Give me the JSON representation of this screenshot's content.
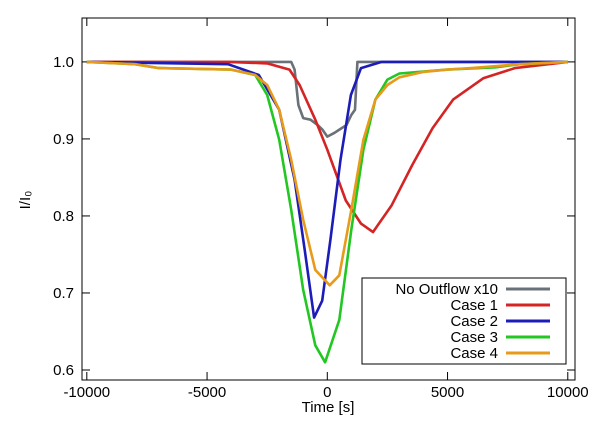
{
  "chart_data": {
    "type": "line",
    "x_label": "Time [s]",
    "y_label": "I/I₀",
    "xlim": [
      -10200,
      10300
    ],
    "ylim": [
      0.587,
      1.057
    ],
    "xticks": [
      -10000,
      -5000,
      0,
      5000,
      10000
    ],
    "yticks": [
      0.6,
      0.7,
      0.8,
      0.9,
      {
        "value": 1,
        "label": "1.0"
      }
    ],
    "legend": "lower right",
    "series": [
      {
        "name": "No Outflow x10",
        "color": "#6b7178",
        "x": [
          -10000,
          -1500,
          -1360,
          -1200,
          -1000,
          -700,
          -400,
          -200,
          0,
          300,
          600,
          800,
          1000,
          1150,
          1250,
          10000
        ],
        "values": [
          1,
          1,
          0.99,
          0.944,
          0.927,
          0.925,
          0.918,
          0.912,
          0.903,
          0.908,
          0.914,
          0.918,
          0.931,
          0.938,
          1,
          1
        ]
      },
      {
        "name": "Case 1",
        "color": "#d42424",
        "x": [
          -10000,
          -4100,
          -2500,
          -1570,
          -1150,
          -500,
          0,
          770,
          1400,
          1900,
          2680,
          3530,
          4380,
          5230,
          6500,
          7800,
          10000
        ],
        "values": [
          1,
          1,
          0.998,
          0.99,
          0.97,
          0.925,
          0.886,
          0.82,
          0.79,
          0.779,
          0.814,
          0.866,
          0.914,
          0.951,
          0.979,
          0.992,
          1
        ]
      },
      {
        "name": "Case 2",
        "color": "#1c1cb8",
        "x": [
          -10000,
          -4130,
          -2850,
          -2000,
          -1360,
          -940,
          -550,
          -210,
          130,
          550,
          980,
          1400,
          2260,
          10000
        ],
        "values": [
          1,
          0.997,
          0.983,
          0.938,
          0.847,
          0.756,
          0.668,
          0.69,
          0.769,
          0.873,
          0.957,
          0.992,
          1,
          1
        ]
      },
      {
        "name": "Case 3",
        "color": "#22c722",
        "x": [
          -10000,
          -8000,
          -7000,
          -4000,
          -3000,
          -2500,
          -2000,
          -1500,
          -1000,
          -500,
          -90,
          500,
          1000,
          1500,
          2000,
          2500,
          3000,
          5000,
          7000,
          8000,
          10000
        ],
        "values": [
          1,
          0.997,
          0.992,
          0.99,
          0.983,
          0.957,
          0.899,
          0.808,
          0.704,
          0.632,
          0.61,
          0.665,
          0.782,
          0.886,
          0.951,
          0.977,
          0.985,
          0.99,
          0.993,
          0.997,
          1
        ]
      },
      {
        "name": "Case 4",
        "color": "#e89a1a",
        "x": [
          -10000,
          -8000,
          -7000,
          -4000,
          -3000,
          -2500,
          -2000,
          -1500,
          -1000,
          -500,
          100,
          500,
          1000,
          1500,
          2000,
          2500,
          3000,
          4000,
          5000,
          6000,
          8000,
          10000
        ],
        "values": [
          1,
          0.997,
          0.992,
          0.99,
          0.983,
          0.97,
          0.938,
          0.873,
          0.795,
          0.73,
          0.71,
          0.723,
          0.808,
          0.899,
          0.951,
          0.97,
          0.98,
          0.987,
          0.99,
          0.992,
          0.997,
          1
        ]
      }
    ]
  }
}
